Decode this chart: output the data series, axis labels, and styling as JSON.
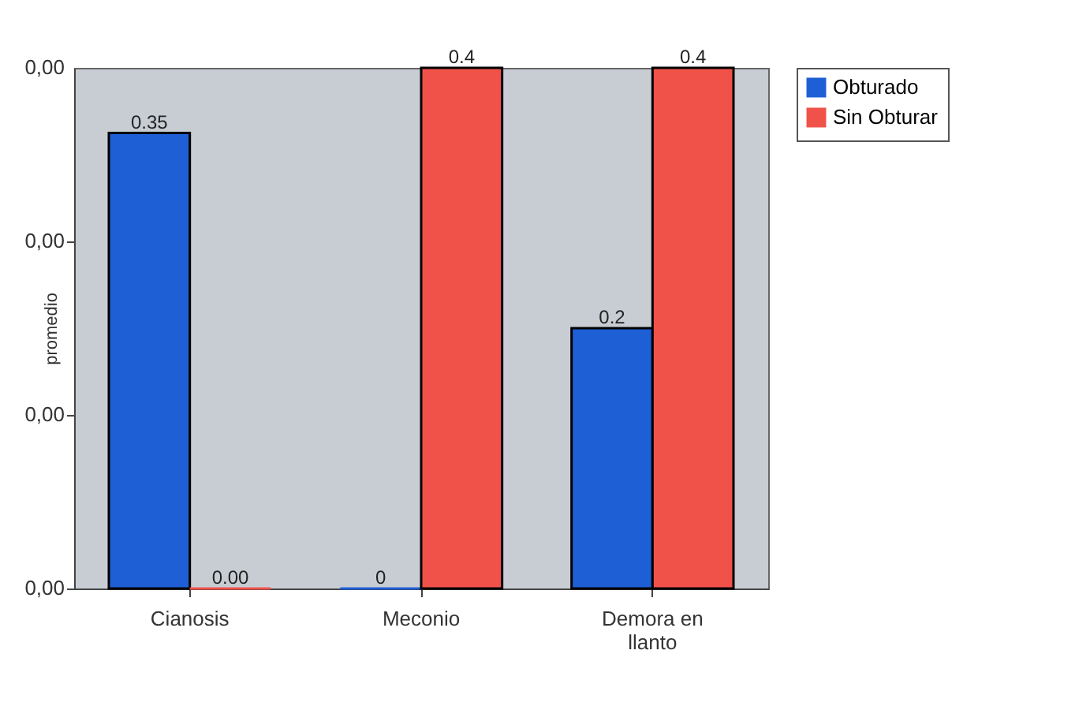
{
  "chart_data": {
    "type": "bar",
    "ylabel": "promedio",
    "categories": [
      "Cianosis",
      "Meconio",
      "Demora en llanto"
    ],
    "series": [
      {
        "name": "Obturado",
        "color": "#1f5fd6",
        "values": [
          0.35,
          0,
          0.2
        ],
        "value_labels": [
          "0.35",
          "0",
          "0.2"
        ]
      },
      {
        "name": "Sin Obturar",
        "color": "#f0524a",
        "values": [
          0,
          0.4,
          0.4
        ],
        "value_labels": [
          "0.00",
          "0.4",
          "0.4"
        ]
      }
    ],
    "ylim": [
      0,
      0.4
    ],
    "annotations": [
      "0,00",
      "0,00",
      "0,00",
      "0,00"
    ],
    "legend": "right"
  }
}
